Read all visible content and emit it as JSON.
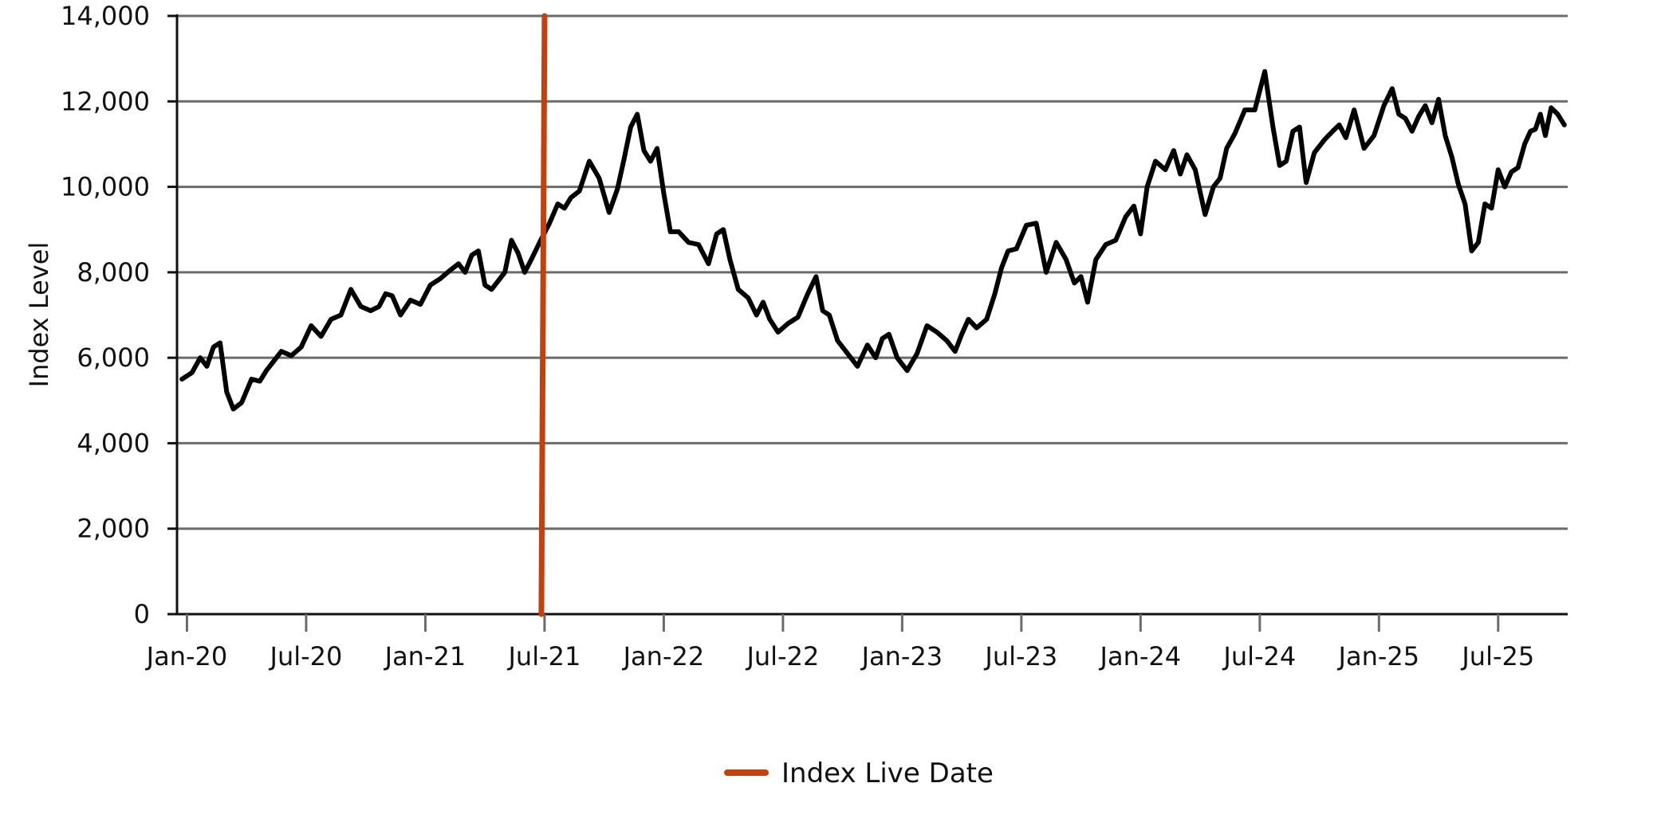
{
  "chart_data": {
    "type": "line",
    "title": "",
    "xlabel": "",
    "ylabel": "Index Level",
    "ylim": [
      0,
      14000
    ],
    "xlim": [
      "2020-01",
      "2025-10"
    ],
    "y_ticks": [
      0,
      2000,
      4000,
      6000,
      8000,
      10000,
      12000,
      14000
    ],
    "y_tick_labels": [
      "0",
      "2,000",
      "4,000",
      "6,000",
      "8,000",
      "10,000",
      "12,000",
      "14,000"
    ],
    "x_ticks": [
      "2020-01",
      "2020-07",
      "2021-01",
      "2021-07",
      "2022-01",
      "2022-07",
      "2023-01",
      "2023-07",
      "2024-01",
      "2024-07",
      "2025-01",
      "2025-07"
    ],
    "x_tick_labels": [
      "Jan-20",
      "Jul-20",
      "Jan-21",
      "Jul-21",
      "Jan-22",
      "Jul-22",
      "Jan-23",
      "Jul-23",
      "Jan-24",
      "Jul-24",
      "Jan-25",
      "Jul-25"
    ],
    "grid": "horizontal",
    "legend_position": "bottom-center",
    "series": [
      {
        "color": "#000000",
        "points": [
          [
            "2020-01",
            5500
          ],
          [
            "2020-01",
            5650
          ],
          [
            "2020-02",
            6000
          ],
          [
            "2020-02",
            5800
          ],
          [
            "2020-02",
            6250
          ],
          [
            "2020-03",
            6350
          ],
          [
            "2020-03",
            5200
          ],
          [
            "2020-03",
            4800
          ],
          [
            "2020-04",
            4950
          ],
          [
            "2020-04",
            5500
          ],
          [
            "2020-05",
            5450
          ],
          [
            "2020-05",
            5700
          ],
          [
            "2020-05",
            5900
          ],
          [
            "2020-06",
            6150
          ],
          [
            "2020-06",
            6050
          ],
          [
            "2020-07",
            6250
          ],
          [
            "2020-07",
            6750
          ],
          [
            "2020-08",
            6500
          ],
          [
            "2020-08",
            6900
          ],
          [
            "2020-09",
            7000
          ],
          [
            "2020-09",
            7600
          ],
          [
            "2020-10",
            7200
          ],
          [
            "2020-10",
            7100
          ],
          [
            "2020-11",
            7200
          ],
          [
            "2020-11",
            7500
          ],
          [
            "2020-11",
            7450
          ],
          [
            "2020-12",
            7000
          ],
          [
            "2020-12",
            7350
          ],
          [
            "2021-01",
            7250
          ],
          [
            "2021-01",
            7700
          ],
          [
            "2021-02",
            7850
          ],
          [
            "2021-02",
            8050
          ],
          [
            "2021-03",
            8200
          ],
          [
            "2021-03",
            8000
          ],
          [
            "2021-03",
            8400
          ],
          [
            "2021-04",
            8500
          ],
          [
            "2021-04",
            7700
          ],
          [
            "2021-04",
            7600
          ],
          [
            "2021-05",
            7800
          ],
          [
            "2021-05",
            8000
          ],
          [
            "2021-05",
            8750
          ],
          [
            "2021-06",
            8450
          ],
          [
            "2021-06",
            8000
          ],
          [
            "2021-06",
            8300
          ],
          [
            "2021-07",
            8700
          ],
          [
            "2021-07",
            9150
          ],
          [
            "2021-08",
            9600
          ],
          [
            "2021-08",
            9500
          ],
          [
            "2021-08",
            9750
          ],
          [
            "2021-09",
            9900
          ],
          [
            "2021-09",
            10600
          ],
          [
            "2021-10",
            10200
          ],
          [
            "2021-10",
            9400
          ],
          [
            "2021-11",
            9950
          ],
          [
            "2021-11",
            10650
          ],
          [
            "2021-11",
            11400
          ],
          [
            "2021-12",
            11700
          ],
          [
            "2021-12",
            10850
          ],
          [
            "2021-12",
            10600
          ],
          [
            "2022-01",
            10900
          ],
          [
            "2022-01",
            9850
          ],
          [
            "2022-01",
            8950
          ],
          [
            "2022-02",
            8950
          ],
          [
            "2022-02",
            8700
          ],
          [
            "2022-03",
            8650
          ],
          [
            "2022-03",
            8200
          ],
          [
            "2022-04",
            8900
          ],
          [
            "2022-04",
            9000
          ],
          [
            "2022-04",
            8300
          ],
          [
            "2022-05",
            7600
          ],
          [
            "2022-05",
            7400
          ],
          [
            "2022-06",
            7000
          ],
          [
            "2022-06",
            7300
          ],
          [
            "2022-06",
            6900
          ],
          [
            "2022-07",
            6600
          ],
          [
            "2022-07",
            6800
          ],
          [
            "2022-08",
            6950
          ],
          [
            "2022-08",
            7500
          ],
          [
            "2022-09",
            7900
          ],
          [
            "2022-09",
            7100
          ],
          [
            "2022-09",
            7000
          ],
          [
            "2022-10",
            6400
          ],
          [
            "2022-10",
            6100
          ],
          [
            "2022-11",
            5800
          ],
          [
            "2022-11",
            6300
          ],
          [
            "2022-12",
            6000
          ],
          [
            "2022-12",
            6450
          ],
          [
            "2022-12",
            6550
          ],
          [
            "2023-01",
            6000
          ],
          [
            "2023-01",
            5700
          ],
          [
            "2023-02",
            6100
          ],
          [
            "2023-02",
            6750
          ],
          [
            "2023-03",
            6600
          ],
          [
            "2023-03",
            6400
          ],
          [
            "2023-04",
            6150
          ],
          [
            "2023-04",
            6550
          ],
          [
            "2023-04",
            6900
          ],
          [
            "2023-05",
            6700
          ],
          [
            "2023-05",
            6900
          ],
          [
            "2023-06",
            7500
          ],
          [
            "2023-06",
            8100
          ],
          [
            "2023-06",
            8500
          ],
          [
            "2023-07",
            8550
          ],
          [
            "2023-07",
            9100
          ],
          [
            "2023-08",
            9150
          ],
          [
            "2023-08",
            8000
          ],
          [
            "2023-09",
            8700
          ],
          [
            "2023-09",
            8300
          ],
          [
            "2023-10",
            7750
          ],
          [
            "2023-10",
            7900
          ],
          [
            "2023-10",
            7300
          ],
          [
            "2023-11",
            8300
          ],
          [
            "2023-11",
            8650
          ],
          [
            "2023-12",
            8750
          ],
          [
            "2023-12",
            9300
          ],
          [
            "2024-01",
            9550
          ],
          [
            "2024-01",
            8900
          ],
          [
            "2024-01",
            10000
          ],
          [
            "2024-02",
            10600
          ],
          [
            "2024-02",
            10400
          ],
          [
            "2024-03",
            10850
          ],
          [
            "2024-03",
            10300
          ],
          [
            "2024-03",
            10750
          ],
          [
            "2024-04",
            10400
          ],
          [
            "2024-04",
            9350
          ],
          [
            "2024-05",
            10000
          ],
          [
            "2024-05",
            10200
          ],
          [
            "2024-05",
            10900
          ],
          [
            "2024-06",
            11250
          ],
          [
            "2024-06",
            11800
          ],
          [
            "2024-07",
            11800
          ],
          [
            "2024-07",
            12700
          ],
          [
            "2024-08",
            11400
          ],
          [
            "2024-08",
            10500
          ],
          [
            "2024-08",
            10600
          ],
          [
            "2024-09",
            11300
          ],
          [
            "2024-09",
            11400
          ],
          [
            "2024-09",
            10100
          ],
          [
            "2024-10",
            10800
          ],
          [
            "2024-10",
            11100
          ],
          [
            "2024-11",
            11300
          ],
          [
            "2024-11",
            11450
          ],
          [
            "2024-11",
            11150
          ],
          [
            "2024-12",
            11800
          ],
          [
            "2024-12",
            10900
          ],
          [
            "2025-01",
            11200
          ],
          [
            "2025-01",
            11900
          ],
          [
            "2025-02",
            12300
          ],
          [
            "2025-02",
            11700
          ],
          [
            "2025-02",
            11600
          ],
          [
            "2025-03",
            11300
          ],
          [
            "2025-03",
            11650
          ],
          [
            "2025-03",
            11900
          ],
          [
            "2025-04",
            11500
          ],
          [
            "2025-04",
            12050
          ],
          [
            "2025-04",
            11200
          ],
          [
            "2025-05",
            10700
          ],
          [
            "2025-05",
            10050
          ],
          [
            "2025-05",
            9600
          ],
          [
            "2025-06",
            8500
          ],
          [
            "2025-06",
            8700
          ],
          [
            "2025-06",
            9600
          ],
          [
            "2025-07",
            9500
          ],
          [
            "2025-07",
            10400
          ],
          [
            "2025-07",
            10000
          ],
          [
            "2025-08",
            10350
          ],
          [
            "2025-08",
            10450
          ],
          [
            "2025-08",
            11000
          ],
          [
            "2025-09",
            11300
          ],
          [
            "2025-09",
            11350
          ],
          [
            "2025-09",
            11700
          ],
          [
            "2025-09",
            11200
          ],
          [
            "2025-10",
            11850
          ],
          [
            "2025-10",
            11700
          ],
          [
            "2025-10",
            11450
          ]
        ]
      }
    ],
    "annotations": [
      {
        "name": "Index Live Date",
        "type": "vertical-line",
        "x": "2021-07",
        "y_range": [
          0,
          14000
        ],
        "color": "#c2410c"
      }
    ],
    "legend": [
      {
        "label": "Index Live Date",
        "color": "#c2410c"
      }
    ]
  }
}
